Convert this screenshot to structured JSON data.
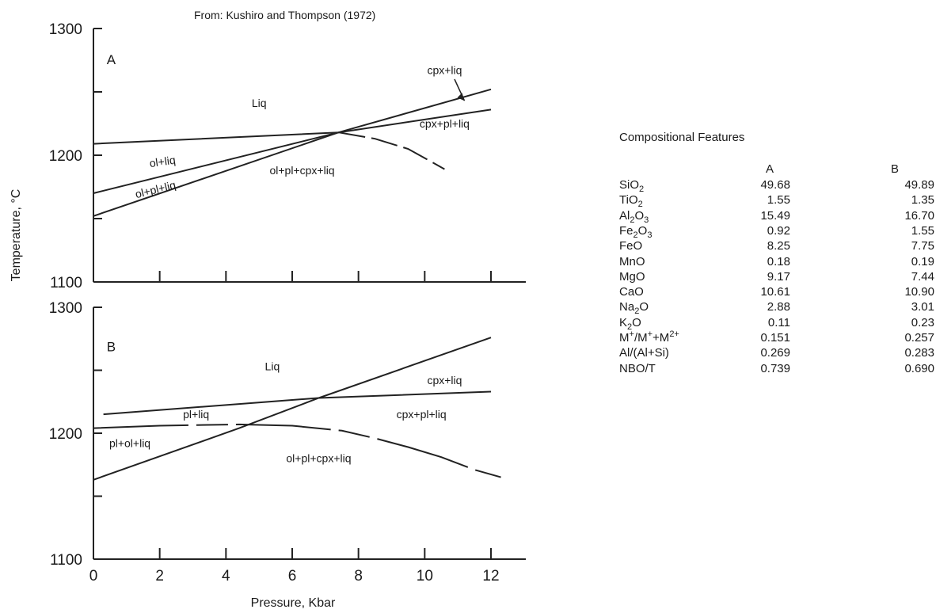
{
  "figure_source": "From: Kushiro and Thompson (1972)",
  "chart_data": [
    {
      "type": "line",
      "panel_label": "A",
      "xlabel": "Pressure, Kbar",
      "ylabel": "Temperature, °C",
      "xlim": [
        0,
        12
      ],
      "ylim": [
        1100,
        1300
      ],
      "x_ticks": [
        "0",
        "2",
        "4",
        "6",
        "8",
        "10",
        "12"
      ],
      "y_ticks": [
        "1100",
        "1200",
        "1300"
      ],
      "series": [
        {
          "values": [
            [
              0,
              1209
            ],
            [
              7.4,
              1218
            ],
            [
              12,
              1236
            ]
          ]
        },
        {
          "values": [
            [
              0,
              1170
            ],
            [
              7.4,
              1218
            ]
          ]
        },
        {
          "values": [
            [
              0,
              1152
            ],
            [
              7.4,
              1218
            ],
            [
              12,
              1252
            ]
          ]
        },
        {
          "dashed_end": true,
          "values": [
            [
              7.4,
              1218
            ],
            [
              8.5,
              1213
            ],
            [
              9.5,
              1205
            ],
            [
              10.6,
              1189
            ]
          ]
        }
      ],
      "annotations": [
        {
          "text": "Liq",
          "x": 5,
          "y": 1238
        },
        {
          "text": "ol+liq",
          "x": 2.1,
          "y": 1192
        },
        {
          "text": "ol+pl+liq",
          "x": 1.9,
          "y": 1170
        },
        {
          "text": "ol+pl+cpx+liq",
          "x": 6.3,
          "y": 1185
        },
        {
          "text": "cpx+liq",
          "x": 10.6,
          "y": 1264
        },
        {
          "text": "cpx+pl+liq",
          "x": 10.6,
          "y": 1222
        }
      ]
    },
    {
      "type": "line",
      "panel_label": "B",
      "xlabel": "Pressure, Kbar",
      "ylabel": "Temperature, °C",
      "xlim": [
        0,
        12
      ],
      "ylim": [
        1100,
        1300
      ],
      "x_ticks": [
        "0",
        "2",
        "4",
        "6",
        "8",
        "10",
        "12"
      ],
      "y_ticks": [
        "1100",
        "1200",
        "1300"
      ],
      "series": [
        {
          "values": [
            [
              0.3,
              1215
            ],
            [
              6.8,
              1228
            ],
            [
              12,
              1233
            ]
          ]
        },
        {
          "values": [
            [
              0,
              1163
            ],
            [
              4.4,
              1204
            ],
            [
              6.8,
              1228
            ],
            [
              12,
              1276
            ]
          ]
        },
        {
          "dashed_end": true,
          "values": [
            [
              0,
              1204
            ],
            [
              2,
              1206
            ],
            [
              4.4,
              1207
            ],
            [
              6,
              1206
            ],
            [
              7.5,
              1202
            ],
            [
              8.5,
              1196
            ],
            [
              9.5,
              1189
            ],
            [
              10.5,
              1181
            ],
            [
              11.5,
              1171
            ],
            [
              12.3,
              1165
            ]
          ]
        }
      ],
      "annotations": [
        {
          "text": "Liq",
          "x": 5.4,
          "y": 1250
        },
        {
          "text": "cpx+liq",
          "x": 10.6,
          "y": 1239
        },
        {
          "text": "pl+liq",
          "x": 3.1,
          "y": 1212
        },
        {
          "text": "cpx+pl+liq",
          "x": 9.9,
          "y": 1212
        },
        {
          "text": "pl+ol+liq",
          "x": 1.1,
          "y": 1189
        },
        {
          "text": "ol+pl+cpx+liq",
          "x": 6.8,
          "y": 1177
        }
      ]
    }
  ],
  "table": {
    "title": "Compositional Features",
    "col_a": "A",
    "col_b": "B",
    "rows": [
      {
        "pre": "SiO",
        "sub": "2",
        "post": "",
        "a": "49.68",
        "b": "49.89"
      },
      {
        "pre": "TiO",
        "sub": "2",
        "post": "",
        "a": "1.55",
        "b": "1.35"
      },
      {
        "pre": "Al",
        "sub": "2",
        "post": "O",
        "sub2": "3",
        "a": "15.49",
        "b": "16.70"
      },
      {
        "pre": "Fe",
        "sub": "2",
        "post": "O",
        "sub2": "3",
        "a": "0.92",
        "b": "1.55"
      },
      {
        "pre": "FeO",
        "a": "8.25",
        "b": "7.75"
      },
      {
        "pre": "MnO",
        "a": "0.18",
        "b": "0.19"
      },
      {
        "pre": "MgO",
        "a": "9.17",
        "b": "7.44"
      },
      {
        "pre": "CaO",
        "a": "10.61",
        "b": "10.90"
      },
      {
        "pre": "Na",
        "sub": "2",
        "post": "O",
        "a": "2.88",
        "b": "3.01"
      },
      {
        "pre": "K",
        "sub": "2",
        "post": "O",
        "a": "0.11",
        "b": "0.23"
      },
      {
        "pre": "M",
        "sup": "+",
        "post": "/M",
        "sup2": "+",
        "post2": "+M",
        "sup3": "2+",
        "a": "0.151",
        "b": "0.257"
      },
      {
        "pre": "Al/(Al+Si)",
        "a": "0.269",
        "b": "0.283"
      },
      {
        "pre": "NBO/T",
        "a": "0.739",
        "b": "0.690"
      }
    ]
  }
}
